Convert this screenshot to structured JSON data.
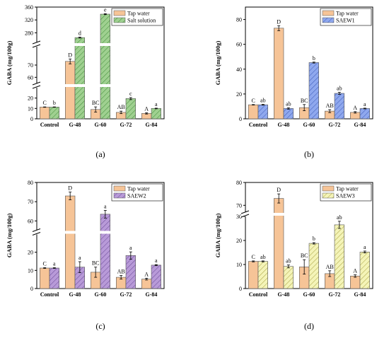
{
  "chart_data": [
    {
      "type": "bar",
      "panel_label": "(a)",
      "ylabel": "GABA (mg/100g)",
      "categories": [
        "Control",
        "G-48",
        "G-60",
        "G-72",
        "G-84"
      ],
      "series": [
        {
          "name": "Tap water",
          "values": [
            11.3,
            73.0,
            9.0,
            6.2,
            5.2
          ],
          "errors": [
            0.2,
            2.0,
            2.5,
            1.2,
            0.6
          ],
          "letters": [
            "C",
            "D",
            "BC",
            "AB",
            "A"
          ]
        },
        {
          "name": "Salt solution",
          "values": [
            11.3,
            265,
            338,
            19.5,
            10.0
          ],
          "errors": [
            0.2,
            1.5,
            1.5,
            1.0,
            0.3
          ],
          "letters": [
            "b",
            "d",
            "e",
            "c",
            "a"
          ]
        }
      ],
      "legend_position": "top-right",
      "y_axis_break": true,
      "y_segments": [
        {
          "range": [
            0,
            30
          ],
          "ticks": [
            0,
            10,
            20
          ]
        },
        {
          "range": [
            55,
            85
          ],
          "ticks": [
            60,
            70
          ]
        },
        {
          "range": [
            250,
            360
          ],
          "ticks": [
            280,
            320,
            360
          ]
        }
      ],
      "colors": {
        "Tap water": "#f6c497",
        "Salt solution": "#9fd090"
      },
      "hatch": [
        false,
        true
      ]
    },
    {
      "type": "bar",
      "panel_label": "(b)",
      "ylabel": "GABA (mg/100g)",
      "categories": [
        "Control",
        "G-48",
        "G-60",
        "G-72",
        "G-84"
      ],
      "series": [
        {
          "name": "Tap water",
          "values": [
            11.3,
            73.0,
            9.0,
            6.2,
            5.2
          ],
          "errors": [
            0.2,
            2.0,
            2.5,
            1.2,
            0.6
          ],
          "letters": [
            "C",
            "D",
            "BC",
            "AB",
            "A"
          ]
        },
        {
          "name": "SAEW1",
          "values": [
            11.3,
            8.3,
            45.3,
            20.5,
            8.3
          ],
          "errors": [
            0.3,
            0.6,
            0.4,
            0.8,
            0.3
          ],
          "letters": [
            "ab",
            "ab",
            "b",
            "ab",
            "a"
          ]
        }
      ],
      "legend_position": "top-right",
      "y_axis_break": false,
      "ylim": [
        0,
        90
      ],
      "y_ticks": [
        0,
        20,
        40,
        60,
        80
      ],
      "colors": {
        "Tap water": "#f6c497",
        "SAEW1": "#8fa8ee"
      },
      "hatch": [
        false,
        true
      ]
    },
    {
      "type": "bar",
      "panel_label": "(c)",
      "ylabel": "GABA (mg/100g)",
      "categories": [
        "Control",
        "G-48",
        "G-60",
        "G-72",
        "G-84"
      ],
      "series": [
        {
          "name": "Tap water",
          "values": [
            11.3,
            73.0,
            9.0,
            6.2,
            5.2
          ],
          "errors": [
            0.2,
            2.0,
            2.8,
            1.0,
            0.5
          ],
          "letters": [
            "C",
            "D",
            "BC",
            "AB",
            "A"
          ]
        },
        {
          "name": "SAEW2",
          "values": [
            11.3,
            11.8,
            63.5,
            18.2,
            12.9
          ],
          "errors": [
            0.2,
            3.0,
            2.0,
            2.0,
            0.3
          ],
          "letters": [
            "a",
            "a",
            "a",
            "a",
            "a"
          ]
        }
      ],
      "legend_position": "top-right",
      "y_axis_break": true,
      "y_segments": [
        {
          "range": [
            0,
            30
          ],
          "ticks": [
            0,
            10,
            20
          ]
        },
        {
          "range": [
            55,
            80
          ],
          "ticks": [
            60,
            70,
            80
          ]
        }
      ],
      "colors": {
        "Tap water": "#f6c497",
        "SAEW2": "#b89ad8"
      },
      "hatch": [
        false,
        true
      ]
    },
    {
      "type": "bar",
      "panel_label": "(d)",
      "ylabel": "GABA (mg/100g)",
      "categories": [
        "Control",
        "G-48",
        "G-60",
        "G-72",
        "G-84"
      ],
      "series": [
        {
          "name": "Tap water",
          "values": [
            11.3,
            73.0,
            9.0,
            6.2,
            5.2
          ],
          "errors": [
            0.2,
            2.0,
            3.0,
            1.2,
            0.5
          ],
          "letters": [
            "C",
            "D",
            "BC",
            "AB",
            "A"
          ]
        },
        {
          "name": "SAEW3",
          "values": [
            11.3,
            9.2,
            18.8,
            26.5,
            15.2
          ],
          "errors": [
            0.2,
            0.6,
            0.3,
            1.5,
            0.4
          ],
          "letters": [
            "ab",
            "ab",
            "b",
            "ab",
            "a"
          ]
        }
      ],
      "legend_position": "top-right",
      "y_axis_break": true,
      "y_segments": [
        {
          "range": [
            0,
            30
          ],
          "ticks": [
            0,
            10,
            20,
            30
          ]
        },
        {
          "range": [
            67,
            80
          ],
          "ticks": [
            70,
            80
          ]
        }
      ],
      "colors": {
        "Tap water": "#f6c497",
        "SAEW3": "#f0f0a8"
      },
      "hatch": [
        false,
        true
      ]
    }
  ]
}
